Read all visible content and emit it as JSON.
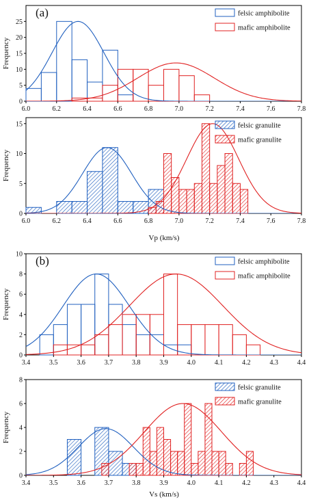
{
  "figure": {
    "label_a": "(a)",
    "label_b": "(b)",
    "xlabel_vp": "Vp (km/s)",
    "xlabel_vs": "Vs (km/s)"
  },
  "colors": {
    "felsic": "#1f5fbf",
    "mafic": "#e02020"
  },
  "chart_data": [
    {
      "type": "bar",
      "id": "vp_amphibolite",
      "ylabel": "Frequency",
      "xlim": [
        6.0,
        7.8
      ],
      "ylim": [
        0,
        30
      ],
      "xticks": [
        6.0,
        6.2,
        6.4,
        6.6,
        6.8,
        7.0,
        7.2,
        7.4,
        7.6,
        7.8
      ],
      "yticks": [
        0,
        5,
        10,
        15,
        20,
        25
      ],
      "grid": false,
      "legend_position": "top-right",
      "series": [
        {
          "name": "felsic amphibolite",
          "kind": "felsic",
          "hatched": false,
          "bin_start": 6.0,
          "bin_width": 0.1,
          "values": [
            4,
            9,
            25,
            13,
            6,
            16,
            2
          ],
          "fit": {
            "mean": 6.34,
            "sd": 0.17,
            "peak": 25
          }
        },
        {
          "name": "mafic amphibolite",
          "kind": "mafic",
          "hatched": false,
          "bin_start": 6.3,
          "bin_width": 0.1,
          "values": [
            1,
            1,
            5,
            10,
            10,
            5,
            10,
            8,
            2
          ],
          "fit": {
            "mean": 6.98,
            "sd": 0.25,
            "peak": 12
          }
        }
      ]
    },
    {
      "type": "bar",
      "id": "vp_granulite",
      "ylabel": "Frequency",
      "xlim": [
        6.0,
        7.8
      ],
      "ylim": [
        0,
        16
      ],
      "xticks": [
        6.0,
        6.2,
        6.4,
        6.6,
        6.8,
        7.0,
        7.2,
        7.4,
        7.6,
        7.8
      ],
      "yticks": [
        0,
        5,
        10,
        15
      ],
      "grid": false,
      "legend_position": "top-right",
      "series": [
        {
          "name": "felsic granulite",
          "kind": "felsic",
          "hatched": true,
          "bin_start": 6.0,
          "bin_width": 0.1,
          "values": [
            1,
            0,
            2,
            2,
            7,
            11,
            2,
            2,
            4
          ],
          "fit": {
            "mean": 6.53,
            "sd": 0.16,
            "peak": 11
          }
        },
        {
          "name": "mafic granulite",
          "kind": "mafic",
          "hatched": true,
          "bin_start": 6.8,
          "bin_width": 0.05,
          "values": [
            1,
            2,
            10,
            6,
            4,
            4,
            5,
            15,
            5,
            8,
            10,
            5,
            4
          ],
          "fit": {
            "mean": 7.22,
            "sd": 0.17,
            "peak": 15
          }
        }
      ]
    },
    {
      "type": "bar",
      "id": "vs_amphibolite",
      "ylabel": "Frequency",
      "xlim": [
        3.4,
        4.4
      ],
      "ylim": [
        0,
        10
      ],
      "xticks": [
        3.4,
        3.5,
        3.6,
        3.7,
        3.8,
        3.9,
        4.0,
        4.1,
        4.2,
        4.3,
        4.4
      ],
      "yticks": [
        0,
        2,
        4,
        6,
        8,
        10
      ],
      "grid": false,
      "legend_position": "top-right",
      "series": [
        {
          "name": "felsic amphibolite",
          "kind": "felsic",
          "hatched": false,
          "bin_start": 3.45,
          "bin_width": 0.05,
          "values": [
            2,
            3,
            5,
            5,
            8,
            5,
            3,
            2,
            2,
            1,
            1
          ],
          "fit": {
            "mean": 3.655,
            "sd": 0.12,
            "peak": 8
          }
        },
        {
          "name": "mafic amphibolite",
          "kind": "mafic",
          "hatched": false,
          "bin_start": 3.5,
          "bin_width": 0.05,
          "values": [
            1,
            1,
            1,
            2,
            3,
            4,
            4,
            4,
            8,
            3,
            3,
            3,
            3,
            2,
            1
          ],
          "fit": {
            "mean": 3.945,
            "sd": 0.17,
            "peak": 8
          }
        }
      ]
    },
    {
      "type": "bar",
      "id": "vs_granulite",
      "ylabel": "Frequency",
      "xlim": [
        3.4,
        4.4
      ],
      "ylim": [
        0,
        8
      ],
      "xticks": [
        3.4,
        3.5,
        3.6,
        3.7,
        3.8,
        3.9,
        4.0,
        4.1,
        4.2,
        4.3,
        4.4
      ],
      "yticks": [
        0,
        2,
        4,
        6,
        8
      ],
      "grid": false,
      "legend_position": "top-right",
      "series": [
        {
          "name": "felsic granulite",
          "kind": "felsic",
          "hatched": true,
          "bin_start": 3.55,
          "bin_width": 0.05,
          "values": [
            3,
            0,
            4,
            2,
            1
          ],
          "fit": {
            "mean": 3.69,
            "sd": 0.1,
            "peak": 3.9
          }
        },
        {
          "name": "mafic granulite",
          "kind": "mafic",
          "hatched": true,
          "bin_start": 3.6,
          "bin_width": 0.025,
          "values": [
            0,
            0,
            0,
            1,
            0,
            0,
            0,
            1,
            1,
            4,
            2,
            4,
            3,
            2,
            2,
            6,
            1,
            2,
            6,
            2,
            2,
            1,
            0,
            1,
            2
          ],
          "fit": {
            "mean": 3.97,
            "sd": 0.14,
            "peak": 6
          }
        }
      ]
    }
  ]
}
